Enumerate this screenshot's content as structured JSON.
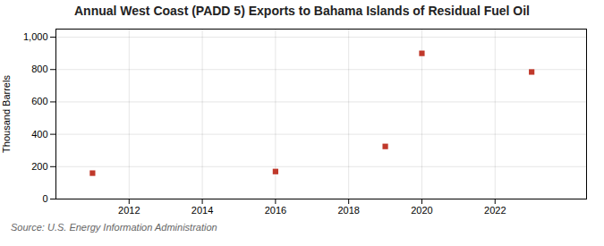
{
  "chart_data": {
    "type": "scatter",
    "title": "Annual West Coast (PADD 5) Exports to Bahama Islands of Residual Fuel Oil",
    "ylabel": "Thousand Barrels",
    "annotations": [
      "Source: U.S. Energy Information Administration"
    ],
    "x": [
      2011,
      2016,
      2019,
      2020,
      2023
    ],
    "values": [
      160,
      170,
      325,
      900,
      785
    ],
    "color": "#c0392b",
    "marker": "square",
    "xlim": [
      2010.0,
      2024.5
    ],
    "ylim": [
      0,
      1050
    ],
    "xticks": [
      2012,
      2014,
      2016,
      2018,
      2020,
      2022
    ],
    "yticks": [
      0,
      200,
      400,
      600,
      800,
      {
        "value": 1000,
        "label": "1,000"
      }
    ],
    "grid": true
  }
}
